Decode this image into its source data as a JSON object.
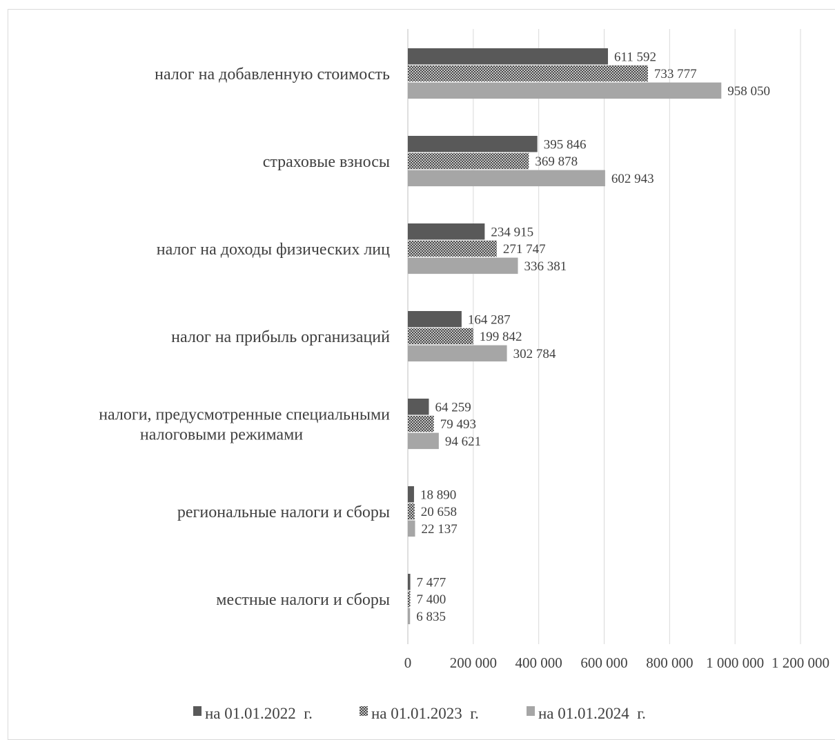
{
  "chart_data": {
    "type": "bar",
    "orientation": "horizontal",
    "title": "",
    "xlabel": "",
    "ylabel": "",
    "categories": [
      "налог на добавленную стоимость",
      "страховые взносы",
      "налог на доходы физических лиц",
      "налог на прибыль организаций",
      "налоги, предусмотренные специальными налоговыми режимами",
      "региональные налоги и сборы",
      "местные налоги и сборы"
    ],
    "category_lines": [
      [
        "налог на добавленную стоимость"
      ],
      [
        "страховые взносы"
      ],
      [
        "налог на доходы физических лиц"
      ],
      [
        "налог на прибыль организаций"
      ],
      [
        "налоги, предусмотренные специальными",
        "налоговыми режимами"
      ],
      [
        "региональные налоги и сборы"
      ],
      [
        "местные налоги и сборы"
      ]
    ],
    "series": [
      {
        "name": "на 01.01.2022  г.",
        "color": "#595959",
        "pattern": "solid",
        "values": [
          611592,
          395846,
          234915,
          164287,
          64259,
          18890,
          7477
        ],
        "labels": [
          "611 592",
          "395 846",
          "234 915",
          "164 287",
          "64 259",
          "18 890",
          "7 477"
        ]
      },
      {
        "name": "на 01.01.2023  г.",
        "color": "#404040",
        "pattern": "crosshatch",
        "values": [
          733777,
          369878,
          271747,
          199842,
          79493,
          20658,
          7400
        ],
        "labels": [
          "733 777",
          "369 878",
          "271 747",
          "199 842",
          "79 493",
          "20 658",
          "7 400"
        ]
      },
      {
        "name": "на 01.01.2024  г.",
        "color": "#a6a6a6",
        "pattern": "solid",
        "values": [
          958050,
          602943,
          336381,
          302784,
          94621,
          22137,
          6835
        ],
        "labels": [
          "958 050",
          "602 943",
          "336 381",
          "302 784",
          "94 621",
          "22 137",
          "6 835"
        ]
      }
    ],
    "xlim": [
      0,
      1200000
    ],
    "x_ticks": [
      0,
      200000,
      400000,
      600000,
      800000,
      1000000,
      1200000
    ],
    "x_tick_labels": [
      "0",
      "200 000",
      "400 000",
      "600 000",
      "800 000",
      "1 000 000",
      "1 200 000"
    ],
    "grid": true,
    "gridline_color": "#d9d9d9",
    "legend_position": "bottom"
  }
}
